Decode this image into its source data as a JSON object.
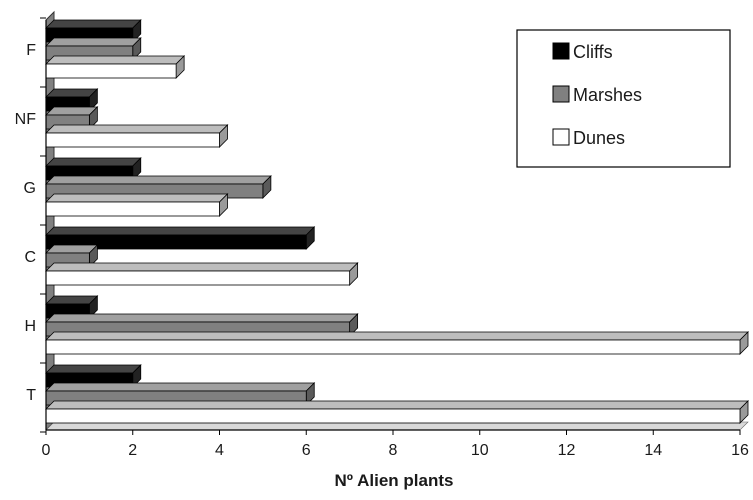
{
  "chart_data": {
    "type": "bar",
    "orientation": "horizontal",
    "style": "3d",
    "categories": [
      "F",
      "NF",
      "G",
      "C",
      "H",
      "T"
    ],
    "series": [
      {
        "name": "Cliffs",
        "values": [
          2,
          1,
          2,
          6,
          1,
          2
        ],
        "color": "#000000"
      },
      {
        "name": "Marshes",
        "values": [
          2,
          1,
          5,
          1,
          7,
          6
        ],
        "color": "#808080"
      },
      {
        "name": "Dunes",
        "values": [
          3,
          4,
          4,
          7,
          16,
          16
        ],
        "color": "#ffffff"
      }
    ],
    "xlabel": "Nº Alien plants",
    "ylabel": "",
    "title": "",
    "xlim": [
      0,
      16
    ],
    "xticks": [
      0,
      2,
      4,
      6,
      8,
      10,
      12,
      14,
      16
    ],
    "grid": false,
    "legend_position": "top-right"
  }
}
